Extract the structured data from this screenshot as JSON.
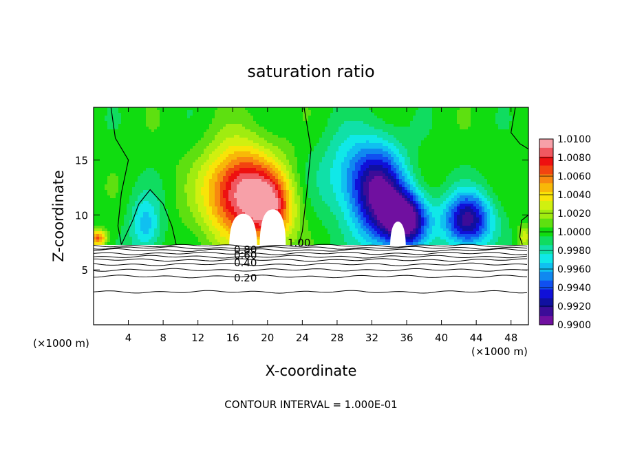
{
  "chart_data": {
    "type": "heatmap",
    "title": "saturation ratio",
    "xlabel": "X-coordinate",
    "ylabel": "Z-coordinate",
    "x_unit_left": "(×1000 m)",
    "x_unit_right": "(×1000 m)",
    "xlim": [
      0,
      50
    ],
    "ylim": [
      0,
      19.8
    ],
    "x_ticks": [
      4,
      8,
      12,
      16,
      20,
      24,
      28,
      32,
      36,
      40,
      44,
      48
    ],
    "y_ticks": [
      5,
      10,
      15
    ],
    "footer": "CONTOUR INTERVAL = 1.000E-01",
    "colorbar": {
      "levels": [
        "1.0100",
        "1.0080",
        "1.0060",
        "1.0040",
        "1.0020",
        "1.0000",
        "0.9980",
        "0.9960",
        "0.9940",
        "0.9920",
        "0.9900"
      ],
      "colors": [
        "#f7a0a8",
        "#f05860",
        "#ee1010",
        "#f24410",
        "#f88810",
        "#f8b808",
        "#f8e408",
        "#d0f010",
        "#a0ec10",
        "#5ee010",
        "#10dc10",
        "#10dc60",
        "#10e0a8",
        "#10e8e8",
        "#10c0f0",
        "#1088f0",
        "#1050f0",
        "#1010d8",
        "#1010a0",
        "#3c0c98",
        "#7010a0"
      ],
      "count": 11
    },
    "field_blobs": [
      {
        "x": 17.0,
        "z": 12.0,
        "sx": 4.2,
        "sz": 4.2,
        "value": 0.01
      },
      {
        "x": 20.5,
        "z": 10.5,
        "sx": 2.6,
        "sz": 3.0,
        "value": 0.006
      },
      {
        "x": 6.0,
        "z": 9.0,
        "sx": 1.8,
        "sz": 2.8,
        "value": -0.004
      },
      {
        "x": 33.0,
        "z": 11.5,
        "sx": 3.0,
        "sz": 4.5,
        "value": -0.008
      },
      {
        "x": 36.0,
        "z": 9.5,
        "sx": 2.5,
        "sz": 2.5,
        "value": -0.01
      },
      {
        "x": 43.0,
        "z": 9.5,
        "sx": 2.8,
        "sz": 2.5,
        "value": -0.009
      },
      {
        "x": 30.0,
        "z": 13.5,
        "sx": 4.0,
        "sz": 4.0,
        "value": -0.004
      },
      {
        "x": 0.5,
        "z": 7.9,
        "sx": 1.0,
        "sz": 0.7,
        "value": 0.007
      },
      {
        "x": 49.5,
        "z": 8.0,
        "sx": 0.8,
        "sz": 1.0,
        "value": 0.003
      }
    ],
    "contour_labels": [
      "1.00",
      "0.80",
      "0.60",
      "0.40",
      "0.20"
    ],
    "contour_levels_z": [
      7.2,
      7.0,
      6.8,
      6.5,
      6.2,
      5.9,
      5.5,
      5.0,
      4.4,
      3.0
    ],
    "white_regions": [
      {
        "x_center": 17.2,
        "half_width": 1.6,
        "top_z": 10.1
      },
      {
        "x_center": 20.6,
        "half_width": 1.5,
        "top_z": 10.5
      },
      {
        "x_center": 35.0,
        "half_width": 0.9,
        "top_z": 9.4
      }
    ]
  }
}
